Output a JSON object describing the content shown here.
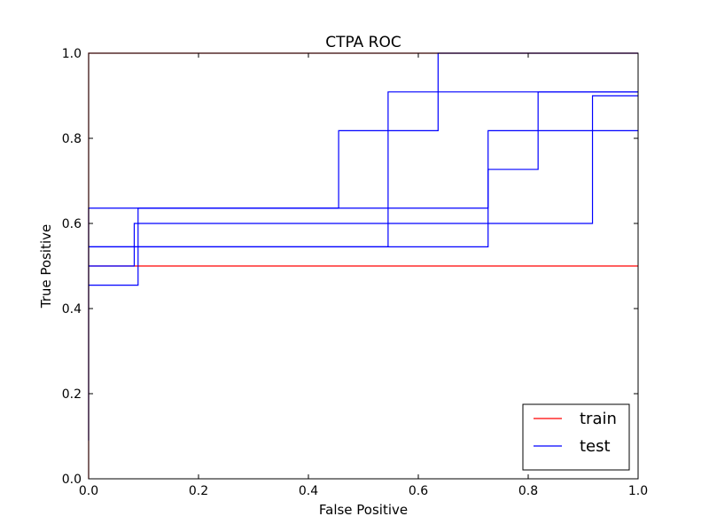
{
  "chart_data": {
    "type": "line",
    "title": "CTPA ROC",
    "xlabel": "False Positive",
    "ylabel": "True Positive",
    "xlim": [
      0.0,
      1.0
    ],
    "ylim": [
      0.0,
      1.0
    ],
    "xticks": [
      "0.0",
      "0.2",
      "0.4",
      "0.6",
      "0.8",
      "1.0"
    ],
    "yticks": [
      "0.0",
      "0.2",
      "0.4",
      "0.6",
      "0.8",
      "1.0"
    ],
    "grid": false,
    "legend": {
      "placement": "lower-right",
      "entries": [
        {
          "label": "train",
          "color": "#ff0000"
        },
        {
          "label": "test",
          "color": "#0000ff"
        }
      ]
    },
    "series": [
      {
        "group": "train",
        "color": "#ff0000",
        "points": [
          [
            0.0,
            0.0
          ],
          [
            0.0,
            1.0
          ],
          [
            1.0,
            1.0
          ]
        ]
      },
      {
        "group": "train",
        "color": "#ff0000",
        "points": [
          [
            0.0,
            0.5
          ],
          [
            1.0,
            0.5
          ]
        ]
      },
      {
        "group": "test",
        "color": "#0000ff",
        "points": [
          [
            0.0,
            0.09
          ],
          [
            0.0,
            0.636
          ],
          [
            0.455,
            0.636
          ],
          [
            0.455,
            0.818
          ],
          [
            0.636,
            0.818
          ],
          [
            0.636,
            1.0
          ],
          [
            1.0,
            1.0
          ]
        ]
      },
      {
        "group": "test",
        "color": "#0000ff",
        "points": [
          [
            0.0,
            0.455
          ],
          [
            0.09,
            0.455
          ],
          [
            0.09,
            0.636
          ],
          [
            0.727,
            0.636
          ],
          [
            0.727,
            0.818
          ],
          [
            1.0,
            0.818
          ]
        ]
      },
      {
        "group": "test",
        "color": "#0000ff",
        "points": [
          [
            0.0,
            0.545
          ],
          [
            0.545,
            0.545
          ],
          [
            0.545,
            0.909
          ],
          [
            1.0,
            0.909
          ]
        ]
      },
      {
        "group": "test",
        "color": "#0000ff",
        "points": [
          [
            0.0,
            0.5
          ],
          [
            0.083,
            0.5
          ],
          [
            0.083,
            0.6
          ],
          [
            0.917,
            0.6
          ],
          [
            0.917,
            0.9
          ],
          [
            1.0,
            0.9
          ]
        ]
      },
      {
        "group": "test",
        "color": "#0000ff",
        "points": [
          [
            0.0,
            0.545
          ],
          [
            0.727,
            0.545
          ],
          [
            0.727,
            0.727
          ],
          [
            0.818,
            0.727
          ],
          [
            0.818,
            0.909
          ],
          [
            1.0,
            0.909
          ]
        ]
      }
    ]
  }
}
